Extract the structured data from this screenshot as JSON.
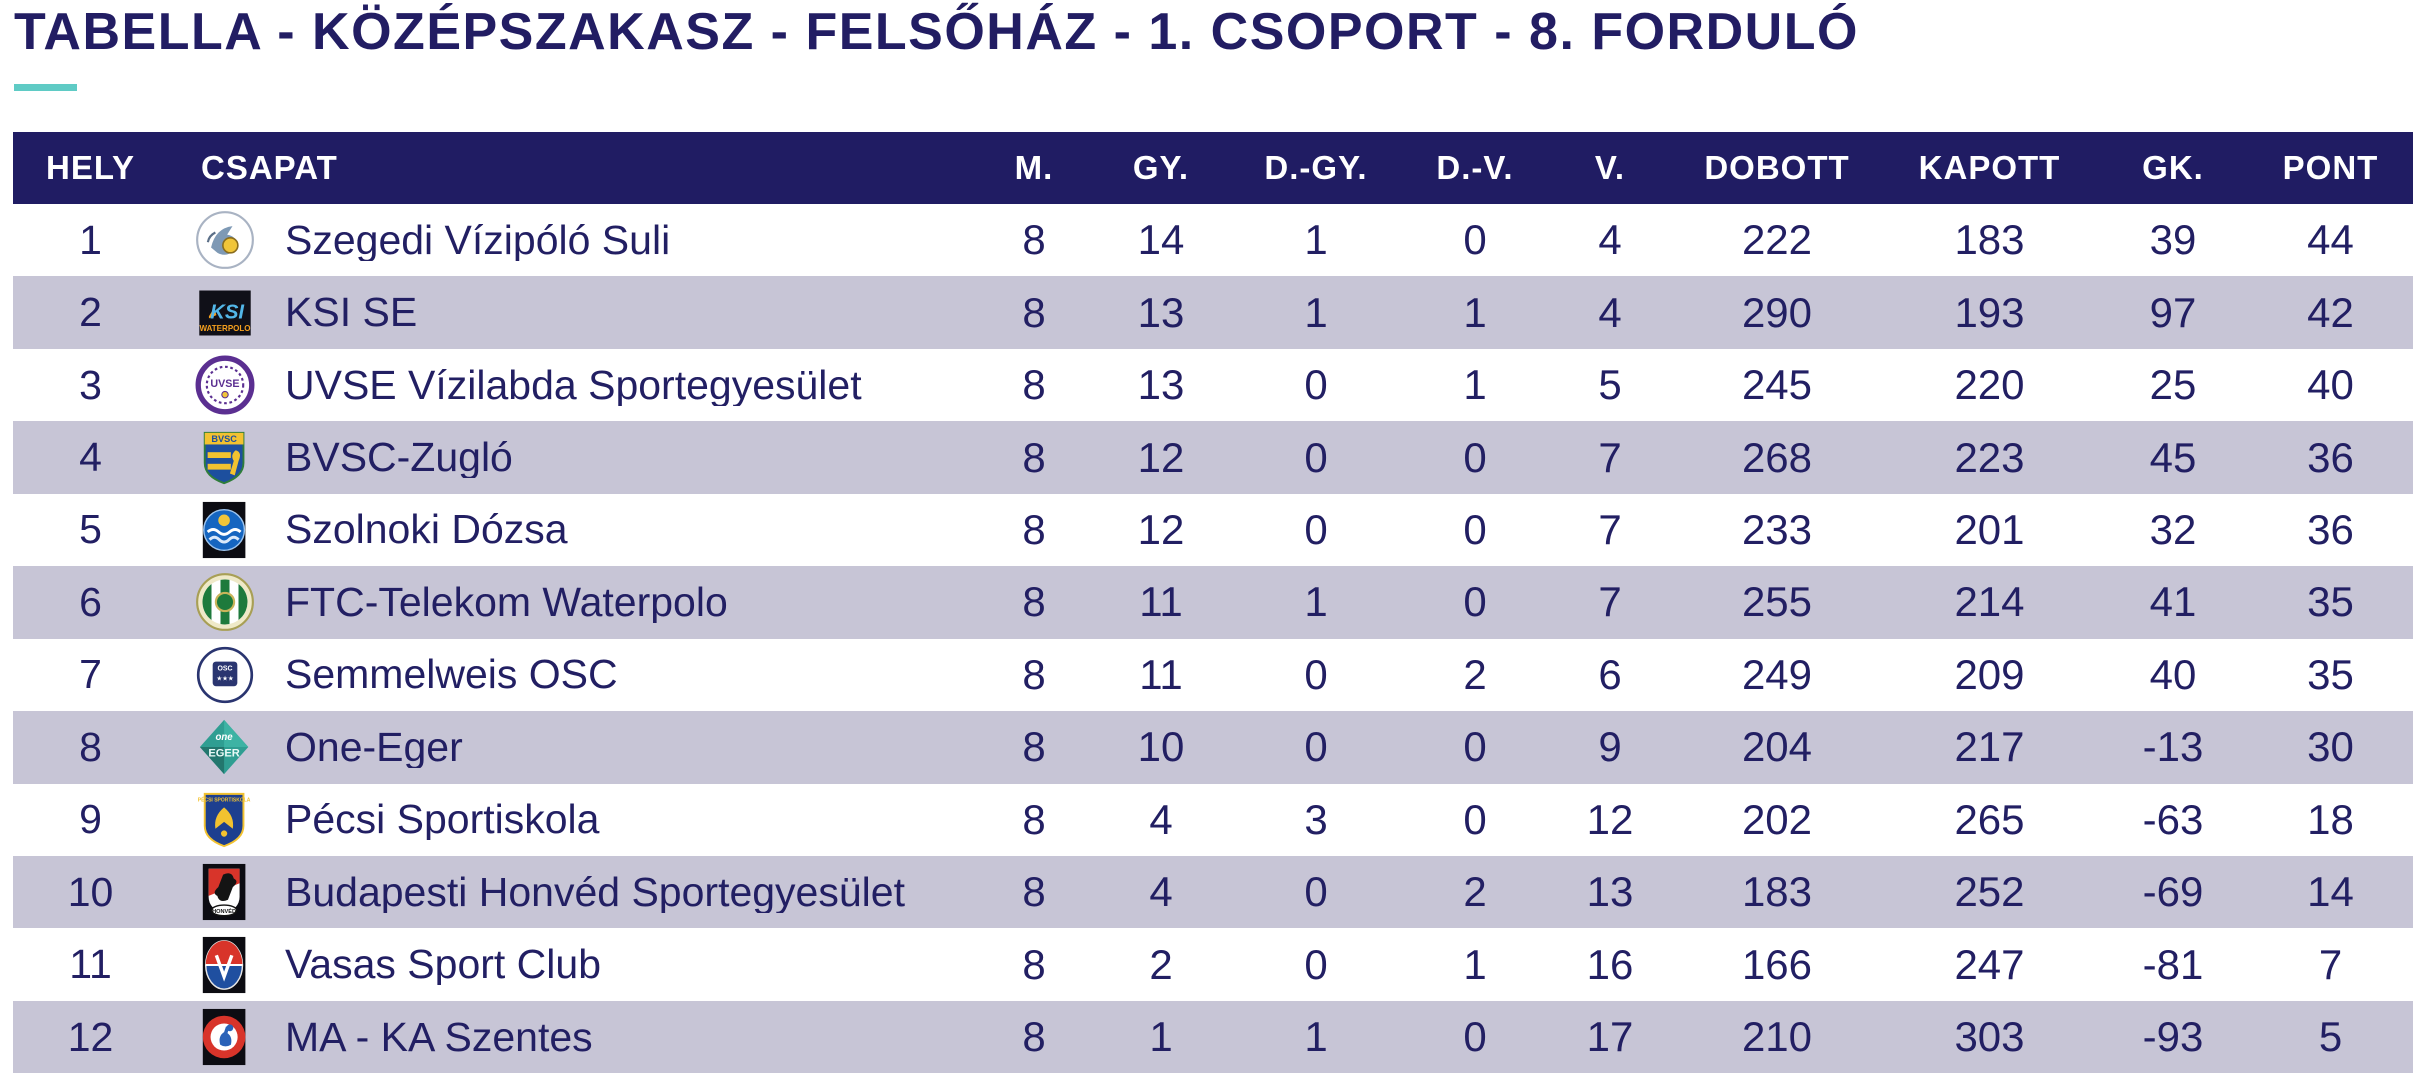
{
  "page": {
    "title": "TABELLA - KÖZÉPSZAKASZ - FELSŐHÁZ - 1. CSOPORT - 8. FORDULÓ"
  },
  "colors": {
    "title_text": "#221d63",
    "accent_teal": "#5fcbc5",
    "header_bg": "#201c63",
    "header_text": "#ffffff",
    "row_text": "#221f63",
    "alt_row_bg": "#c7c5d6"
  },
  "table": {
    "columns": [
      "HELY",
      "CSAPAT",
      "M.",
      "GY.",
      "D.-GY.",
      "D.-V.",
      "V.",
      "DOBOTT",
      "KAPOTT",
      "GK.",
      "PONT"
    ],
    "rows": [
      {
        "hely": "1",
        "logo": "szegedi-vizipolo-suli-logo",
        "csapat": "Szegedi Vízipóló Suli",
        "m": "8",
        "gy": "14",
        "dgy": "1",
        "dv": "0",
        "v": "4",
        "dobott": "222",
        "kapott": "183",
        "gk": "39",
        "pont": "44"
      },
      {
        "hely": "2",
        "logo": "ksi-se-logo",
        "csapat": "KSI SE",
        "m": "8",
        "gy": "13",
        "dgy": "1",
        "dv": "1",
        "v": "4",
        "dobott": "290",
        "kapott": "193",
        "gk": "97",
        "pont": "42"
      },
      {
        "hely": "3",
        "logo": "uvse-logo",
        "csapat": "UVSE Vízilabda Sportegyesület",
        "m": "8",
        "gy": "13",
        "dgy": "0",
        "dv": "1",
        "v": "5",
        "dobott": "245",
        "kapott": "220",
        "gk": "25",
        "pont": "40"
      },
      {
        "hely": "4",
        "logo": "bvsc-zuglo-logo",
        "csapat": "BVSC-Zugló",
        "m": "8",
        "gy": "12",
        "dgy": "0",
        "dv": "0",
        "v": "7",
        "dobott": "268",
        "kapott": "223",
        "gk": "45",
        "pont": "36"
      },
      {
        "hely": "5",
        "logo": "szolnoki-dozsa-logo",
        "csapat": "Szolnoki Dózsa",
        "m": "8",
        "gy": "12",
        "dgy": "0",
        "dv": "0",
        "v": "7",
        "dobott": "233",
        "kapott": "201",
        "gk": "32",
        "pont": "36"
      },
      {
        "hely": "6",
        "logo": "ftc-telekom-waterpolo-logo",
        "csapat": "FTC-Telekom Waterpolo",
        "m": "8",
        "gy": "11",
        "dgy": "1",
        "dv": "0",
        "v": "7",
        "dobott": "255",
        "kapott": "214",
        "gk": "41",
        "pont": "35"
      },
      {
        "hely": "7",
        "logo": "semmelweis-osc-logo",
        "csapat": "Semmelweis OSC",
        "m": "8",
        "gy": "11",
        "dgy": "0",
        "dv": "2",
        "v": "6",
        "dobott": "249",
        "kapott": "209",
        "gk": "40",
        "pont": "35"
      },
      {
        "hely": "8",
        "logo": "one-eger-logo",
        "csapat": "One-Eger",
        "m": "8",
        "gy": "10",
        "dgy": "0",
        "dv": "0",
        "v": "9",
        "dobott": "204",
        "kapott": "217",
        "gk": "-13",
        "pont": "30"
      },
      {
        "hely": "9",
        "logo": "pecsi-sportiskola-logo",
        "csapat": "Pécsi Sportiskola",
        "m": "8",
        "gy": "4",
        "dgy": "3",
        "dv": "0",
        "v": "12",
        "dobott": "202",
        "kapott": "265",
        "gk": "-63",
        "pont": "18"
      },
      {
        "hely": "10",
        "logo": "budapesti-honved-logo",
        "csapat": "Budapesti Honvéd Sportegyesület",
        "m": "8",
        "gy": "4",
        "dgy": "0",
        "dv": "2",
        "v": "13",
        "dobott": "183",
        "kapott": "252",
        "gk": "-69",
        "pont": "14"
      },
      {
        "hely": "11",
        "logo": "vasas-sport-club-logo",
        "csapat": "Vasas Sport Club",
        "m": "8",
        "gy": "2",
        "dgy": "0",
        "dv": "1",
        "v": "16",
        "dobott": "166",
        "kapott": "247",
        "gk": "-81",
        "pont": "7"
      },
      {
        "hely": "12",
        "logo": "ma-ka-szentes-logo",
        "csapat": "MA - KA Szentes",
        "m": "8",
        "gy": "1",
        "dgy": "1",
        "dv": "0",
        "v": "17",
        "dobott": "210",
        "kapott": "303",
        "gk": "-93",
        "pont": "5"
      }
    ]
  }
}
